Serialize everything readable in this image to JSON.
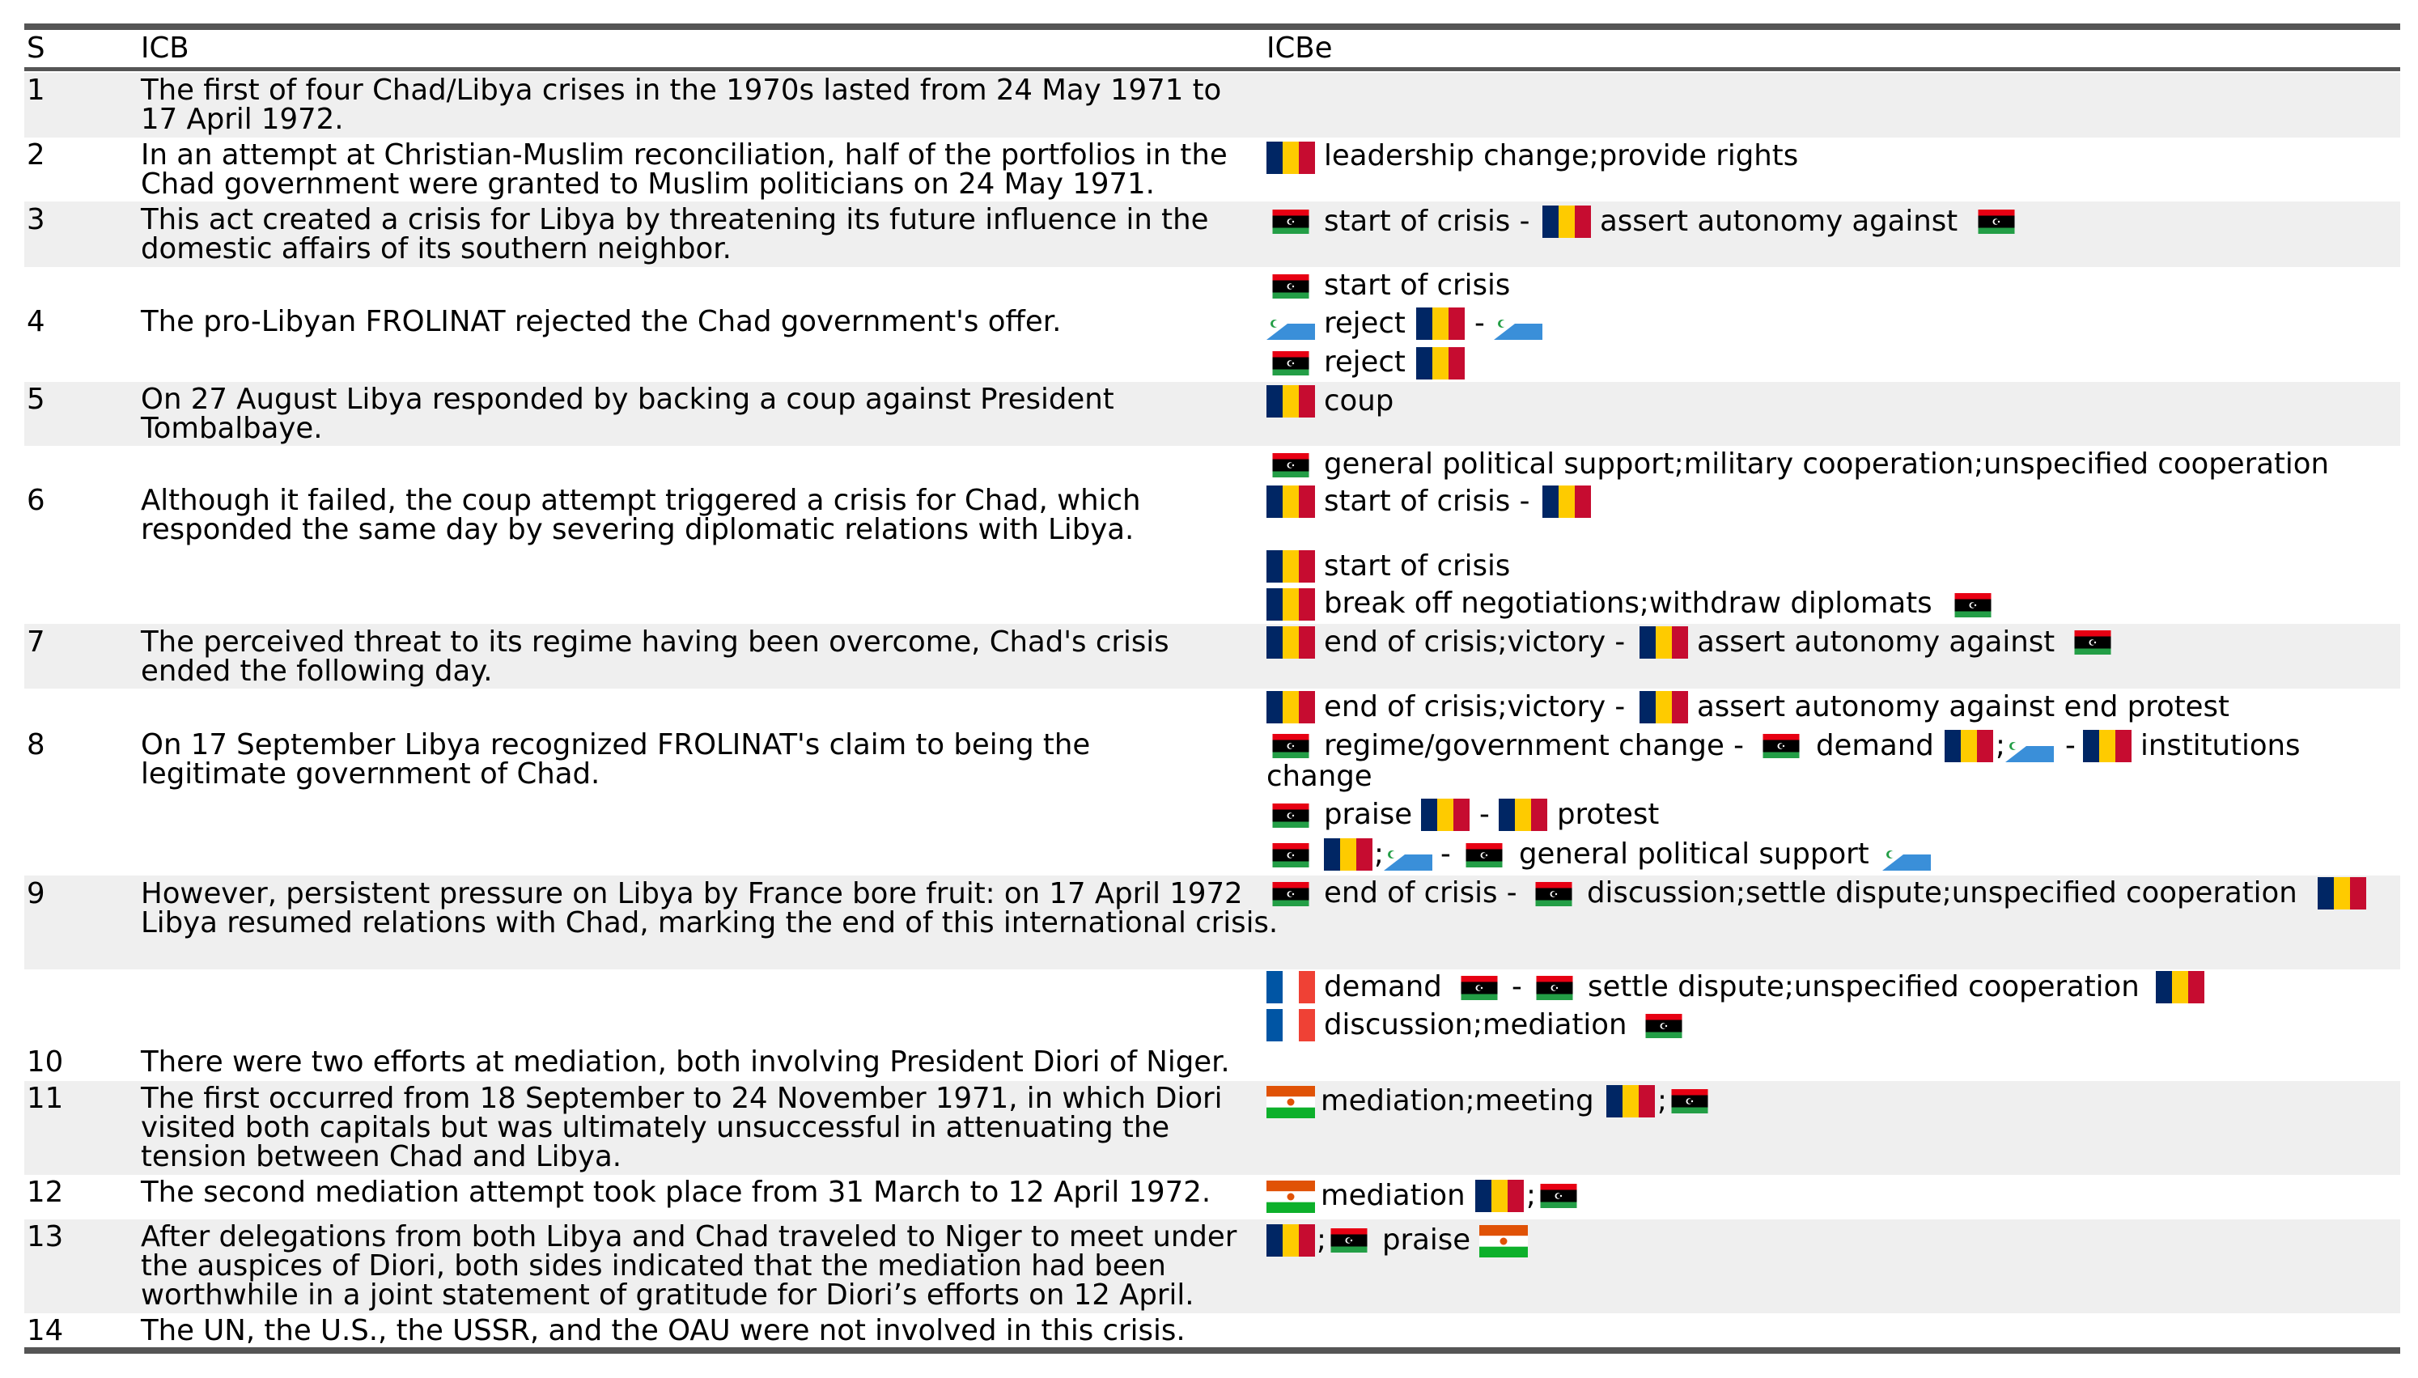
{
  "table": {
    "headers": {
      "s": "S",
      "icb": "ICB",
      "icbe": "ICBe"
    },
    "rows": [
      {
        "s": "1",
        "icb": "The first of four Chad/Libya crises in the 1970s lasted from 24 May 1971 to 17 April 1972.",
        "shaded": true
      },
      {
        "s": "2",
        "icb": "In an attempt at Christian-Muslim reconciliation, half of the portfolios in the Chad government were granted to Muslim politicians on 24 May 1971.",
        "shaded": false
      },
      {
        "s": "3",
        "icb": "This act created a crisis for Libya by threatening its future influence in the domestic affairs of its southern neighbor.",
        "shaded": true
      },
      {
        "s": "4",
        "icb": "The pro-Libyan FROLINAT rejected the Chad government's offer.",
        "shaded": false
      },
      {
        "s": "5",
        "icb": "On 27 August Libya responded by backing a coup against President Tombalbaye.",
        "shaded": true
      },
      {
        "s": "6",
        "icb": "Although it failed, the coup attempt triggered a crisis for Chad, which responded the same day by severing diplomatic relations with Libya.",
        "shaded": false
      },
      {
        "s": "7",
        "icb": "The perceived threat to its regime having been overcome, Chad's crisis ended the following day.",
        "shaded": true
      },
      {
        "s": "8",
        "icb": "On 17 September Libya recognized FROLINAT's claim to being the legitimate government of Chad.",
        "shaded": false
      },
      {
        "s": "9",
        "icb": "However, persistent pressure on Libya by France bore fruit: on 17 April 1972 Libya resumed relations with Chad, marking the end of this international crisis.",
        "shaded": true
      },
      {
        "s": "10",
        "icb": "There were two efforts at mediation, both involving President Diori of Niger.",
        "shaded": false
      },
      {
        "s": "11",
        "icb": "The first occurred from 18 September to 24 November 1971, in which Diori visited both capitals but was ultimately unsuccessful in attenuating the tension between Chad and Libya.",
        "shaded": true
      },
      {
        "s": "12",
        "icb": "The second mediation attempt took place from 31 March to 12 April 1972.",
        "shaded": false
      },
      {
        "s": "13",
        "icb": "After delegations from both Libya and Chad traveled to Niger to meet under the auspices of Diori, both sides indicated that the mediation had been worthwhile in a joint statement of gratitude for Diori’s efforts on 12 April.",
        "shaded": true
      },
      {
        "s": "14",
        "icb": "The UN, the U.S., the USSR, and the OAU were not involved in this crisis.",
        "shaded": false
      }
    ],
    "events": {
      "r2": "leadership change;provide rights",
      "r3a": "start of crisis -",
      "r3b": "assert autonomy against",
      "r4a": "start of crisis",
      "r4b": "reject",
      "r4c": "-",
      "r4d": "reject",
      "r5": "coup",
      "r6a": "general political support;military cooperation;unspecified cooperation",
      "r6b": "start of crisis -",
      "r6c": "start of crisis",
      "r6d": "break off negotiations;withdraw diplomats",
      "r7a": "end of crisis;victory -",
      "r7b": "assert autonomy against",
      "r8a": "end of crisis;victory -",
      "r8b": "assert autonomy against end protest",
      "r8c": "regime/government change -",
      "r8d": "demand",
      "r8e": ";",
      "r8f": "-",
      "r8g": "institutions",
      "r8h": "change",
      "r8i": "praise",
      "r8j": "-",
      "r8k": "protest",
      "r8l": ";",
      "r8m": "-",
      "r8n": "general political support",
      "r9a": "end of crisis -",
      "r9b": "discussion;settle dispute;unspecified cooperation",
      "r9c": "demand",
      "r9d": "-",
      "r9e": "settle dispute;unspecified cooperation",
      "r9f": "discussion;mediation",
      "r11a": "mediation;meeting",
      "r11b": ";",
      "r12a": "mediation",
      "r12b": ";",
      "r13a": ";",
      "r13b": "praise"
    }
  },
  "colors": {
    "rule": "#555555",
    "row_shade": "#efefef",
    "chad_blue": "#002664",
    "chad_yellow": "#fecb00",
    "chad_red": "#c60c30",
    "libya_red": "#e70013",
    "libya_black": "#000000",
    "libya_green": "#239e46",
    "frolinat_blue": "#3a8fd9",
    "france_blue": "#0055a4",
    "france_red": "#ef4135",
    "niger_orange": "#e05206",
    "niger_green": "#0db02b"
  },
  "icons": {
    "chad": "chad-flag-icon",
    "libya": "libya-flag-icon",
    "frolinat": "frolinat-flag-icon",
    "france": "france-flag-icon",
    "niger": "niger-flag-icon"
  }
}
